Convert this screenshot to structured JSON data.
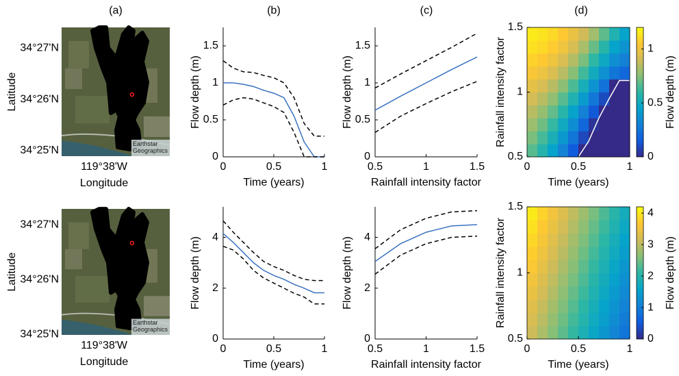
{
  "panel_labels": [
    "(a)",
    "(b)",
    "(c)",
    "(d)"
  ],
  "chart_data": [
    {
      "type": "map",
      "xlabel": "Longitude",
      "ylabel": "Latitude",
      "xlim": [
        -119.65,
        -119.6075
      ],
      "ylim": [
        34.4149,
        34.4567
      ],
      "xticks": [
        {
          "value": -119.6333,
          "label": "119°38'W"
        }
      ],
      "yticks": [
        {
          "value": 34.4167,
          "label": "34°25'N"
        },
        {
          "value": 34.4333,
          "label": "34°26'N"
        },
        {
          "value": 34.45,
          "label": "34°27'N"
        }
      ],
      "points": {
        "x": [
          -119.6223
        ],
        "y": [
          34.4349
        ],
        "color": "#ff2020"
      },
      "attribution": "Earthstar Geographics"
    },
    {
      "type": "line",
      "xlabel": "Time (years)",
      "ylabel": "Flow depth (m)",
      "x": [
        0,
        0.1,
        0.2,
        0.3,
        0.4,
        0.5,
        0.6,
        0.7,
        0.8,
        0.9,
        1.0
      ],
      "xlim": [
        0,
        1
      ],
      "ylim": [
        0,
        1.75
      ],
      "xticks": [
        0,
        0.5,
        1
      ],
      "yticks": [
        0,
        0.5,
        1,
        1.5
      ],
      "series": [
        {
          "color": "#3a72c0",
          "style": "solid",
          "values": [
            1.0,
            1.0,
            0.98,
            0.95,
            0.9,
            0.86,
            0.8,
            0.55,
            0.2,
            0,
            0
          ]
        },
        {
          "color": "#000000",
          "style": "dashed",
          "values": [
            1.3,
            1.2,
            1.15,
            1.14,
            1.1,
            1.07,
            1.0,
            0.8,
            0.45,
            0.28,
            0.28
          ]
        },
        {
          "color": "#000000",
          "style": "dashed",
          "values": [
            0.7,
            0.77,
            0.8,
            0.78,
            0.73,
            0.68,
            0.6,
            0.33,
            0,
            0,
            0
          ]
        }
      ]
    },
    {
      "type": "line",
      "xlabel": "Rainfall intensity factor",
      "ylabel": "Flow depth (m)",
      "x": [
        0.5,
        0.75,
        1,
        1.25,
        1.5
      ],
      "xlim": [
        0.5,
        1.5
      ],
      "ylim": [
        0,
        1.75
      ],
      "xticks": [
        0.5,
        1,
        1.5
      ],
      "yticks": [
        0,
        0.5,
        1,
        1.5
      ],
      "series": [
        {
          "color": "#3a72c0",
          "style": "solid",
          "values": [
            0.63,
            0.82,
            1.0,
            1.18,
            1.35
          ]
        },
        {
          "color": "#000000",
          "style": "dashed",
          "values": [
            0.93,
            1.12,
            1.3,
            1.48,
            1.67
          ]
        },
        {
          "color": "#000000",
          "style": "dashed",
          "values": [
            0.33,
            0.55,
            0.72,
            0.88,
            1.02
          ]
        }
      ]
    },
    {
      "type": "heatmap",
      "xlabel": "Time (years)",
      "ylabel": "Rainfall intensity factor",
      "xlim": [
        0,
        1
      ],
      "ylim": [
        0.5,
        1.5
      ],
      "xticks": [
        0,
        0.5,
        1
      ],
      "yticks": [
        0.5,
        1,
        1.5
      ],
      "x": [
        0.05,
        0.15,
        0.25,
        0.35,
        0.45,
        0.55,
        0.65,
        0.75,
        0.85,
        0.95
      ],
      "y": [
        0.55,
        0.65,
        0.75,
        0.85,
        0.95,
        1.05,
        1.15,
        1.25,
        1.35,
        1.45
      ],
      "z": [
        [
          0.67,
          0.57,
          0.45,
          0.31,
          0.15,
          0,
          0,
          0,
          0,
          0
        ],
        [
          0.73,
          0.64,
          0.53,
          0.4,
          0.25,
          0.09,
          0,
          0,
          0,
          0
        ],
        [
          0.79,
          0.71,
          0.61,
          0.49,
          0.35,
          0.2,
          0.03,
          0,
          0,
          0
        ],
        [
          0.85,
          0.78,
          0.69,
          0.58,
          0.45,
          0.3,
          0.14,
          0,
          0,
          0
        ],
        [
          0.91,
          0.85,
          0.77,
          0.67,
          0.55,
          0.41,
          0.26,
          0.1,
          0,
          0
        ],
        [
          0.97,
          0.92,
          0.85,
          0.76,
          0.65,
          0.52,
          0.38,
          0.24,
          0,
          0
        ],
        [
          1.03,
          0.99,
          0.93,
          0.85,
          0.75,
          0.63,
          0.5,
          0.37,
          0.25,
          0.2
        ],
        [
          1.08,
          1.05,
          1.0,
          0.93,
          0.84,
          0.73,
          0.6,
          0.48,
          0.36,
          0.3
        ],
        [
          1.12,
          1.1,
          1.06,
          1.0,
          0.92,
          0.82,
          0.7,
          0.58,
          0.45,
          0.38
        ],
        [
          1.15,
          1.13,
          1.1,
          1.05,
          0.98,
          0.9,
          0.8,
          0.68,
          0.55,
          0.45
        ]
      ],
      "clim": [
        0,
        1.2
      ],
      "colorbar_ticks": [
        0,
        0.5,
        1
      ],
      "colorbar_label": "Flow depth (m)",
      "colormap": [
        "#352a87",
        "#0f5cdd",
        "#1481d6",
        "#06a4ca",
        "#2eb7a4",
        "#87bf77",
        "#d1bb59",
        "#fec832",
        "#f9fb0e"
      ],
      "contour": {
        "color": "#ffffff",
        "x": [
          0.5,
          0.6,
          0.7,
          0.8,
          0.9,
          1.0
        ],
        "y": [
          0.5,
          0.62,
          0.8,
          0.95,
          1.09,
          1.09
        ]
      }
    },
    {
      "type": "map",
      "xlabel": "Longitude",
      "ylabel": "Latitude",
      "xlim": [
        -119.65,
        -119.6075
      ],
      "ylim": [
        34.4165,
        34.4548
      ],
      "xticks": [
        {
          "value": -119.6333,
          "label": "119°38'W"
        }
      ],
      "yticks": [
        {
          "value": 34.4167,
          "label": "34°25'N"
        },
        {
          "value": 34.4333,
          "label": "34°26'N"
        },
        {
          "value": 34.45,
          "label": "34°27'N"
        }
      ],
      "points": {
        "x": [
          -119.6223
        ],
        "y": [
          34.4444
        ],
        "color": "#ff2020"
      },
      "attribution": "Earthstar Geographics"
    },
    {
      "type": "line",
      "xlabel": "Time (years)",
      "ylabel": "Flow depth (m)",
      "x": [
        0,
        0.1,
        0.2,
        0.3,
        0.4,
        0.5,
        0.6,
        0.7,
        0.8,
        0.9,
        1.0
      ],
      "xlim": [
        0,
        1
      ],
      "ylim": [
        0,
        5.2
      ],
      "xticks": [
        0,
        0.5,
        1
      ],
      "yticks": [
        0,
        2,
        4
      ],
      "series": [
        {
          "color": "#3a72c0",
          "style": "solid",
          "values": [
            4.15,
            3.8,
            3.4,
            3.0,
            2.7,
            2.5,
            2.35,
            2.15,
            2.0,
            1.82,
            1.82
          ]
        },
        {
          "color": "#000000",
          "style": "dashed",
          "values": [
            4.65,
            4.2,
            3.8,
            3.4,
            3.05,
            2.85,
            2.7,
            2.5,
            2.35,
            2.3,
            2.3
          ]
        },
        {
          "color": "#000000",
          "style": "dashed",
          "values": [
            3.65,
            3.5,
            3.15,
            2.7,
            2.4,
            2.2,
            2.0,
            1.8,
            1.65,
            1.38,
            1.38
          ]
        }
      ]
    },
    {
      "type": "line",
      "xlabel": "Rainfall intensity factor",
      "ylabel": "Flow depth (m)",
      "x": [
        0.5,
        0.75,
        1,
        1.25,
        1.5
      ],
      "xlim": [
        0.5,
        1.5
      ],
      "ylim": [
        0,
        5.2
      ],
      "xticks": [
        0.5,
        1,
        1.5
      ],
      "yticks": [
        0,
        2,
        4
      ],
      "series": [
        {
          "color": "#3a72c0",
          "style": "solid",
          "values": [
            3.05,
            3.75,
            4.2,
            4.45,
            4.5
          ]
        },
        {
          "color": "#000000",
          "style": "dashed",
          "values": [
            3.55,
            4.3,
            4.75,
            5.0,
            5.05
          ]
        },
        {
          "color": "#000000",
          "style": "dashed",
          "values": [
            2.55,
            3.3,
            3.75,
            4.0,
            4.05
          ]
        }
      ]
    },
    {
      "type": "heatmap",
      "xlabel": "Time (years)",
      "ylabel": "Rainfall intensity factor",
      "xlim": [
        0,
        1
      ],
      "ylim": [
        0.5,
        1.5
      ],
      "xticks": [
        0,
        0.5,
        1
      ],
      "yticks": [
        0.5,
        1,
        1.5
      ],
      "x": [
        0.05,
        0.15,
        0.25,
        0.35,
        0.45,
        0.55,
        0.65,
        0.75,
        0.85,
        0.95
      ],
      "y": [
        0.55,
        0.65,
        0.75,
        0.85,
        0.95,
        1.05,
        1.15,
        1.25,
        1.35,
        1.45
      ],
      "z": [
        [
          3.13,
          2.88,
          2.63,
          2.38,
          2.13,
          1.88,
          1.63,
          1.38,
          1.13,
          0.88
        ],
        [
          3.23,
          2.98,
          2.73,
          2.48,
          2.23,
          1.98,
          1.73,
          1.48,
          1.23,
          0.98
        ],
        [
          3.33,
          3.08,
          2.83,
          2.58,
          2.33,
          2.08,
          1.83,
          1.58,
          1.33,
          1.08
        ],
        [
          3.43,
          3.18,
          2.93,
          2.68,
          2.43,
          2.18,
          1.93,
          1.68,
          1.43,
          1.18
        ],
        [
          3.53,
          3.28,
          3.03,
          2.78,
          2.53,
          2.28,
          2.03,
          1.78,
          1.53,
          1.28
        ],
        [
          3.63,
          3.38,
          3.13,
          2.88,
          2.63,
          2.38,
          2.13,
          1.88,
          1.63,
          1.38
        ],
        [
          3.73,
          3.48,
          3.23,
          2.98,
          2.73,
          2.48,
          2.23,
          1.98,
          1.73,
          1.48
        ],
        [
          3.83,
          3.58,
          3.33,
          3.08,
          2.83,
          2.58,
          2.33,
          2.08,
          1.83,
          1.58
        ],
        [
          3.93,
          3.68,
          3.43,
          3.18,
          2.93,
          2.68,
          2.43,
          2.18,
          1.93,
          1.68
        ],
        [
          4.03,
          3.78,
          3.53,
          3.28,
          3.03,
          2.78,
          2.53,
          2.28,
          2.03,
          1.78
        ]
      ],
      "clim": [
        0,
        4.2
      ],
      "colorbar_ticks": [
        0,
        1,
        2,
        3,
        4
      ],
      "colorbar_label": "Flow depth (m)",
      "colormap": [
        "#352a87",
        "#0f5cdd",
        "#1481d6",
        "#06a4ca",
        "#2eb7a4",
        "#87bf77",
        "#d1bb59",
        "#fec832",
        "#f9fb0e"
      ]
    }
  ]
}
